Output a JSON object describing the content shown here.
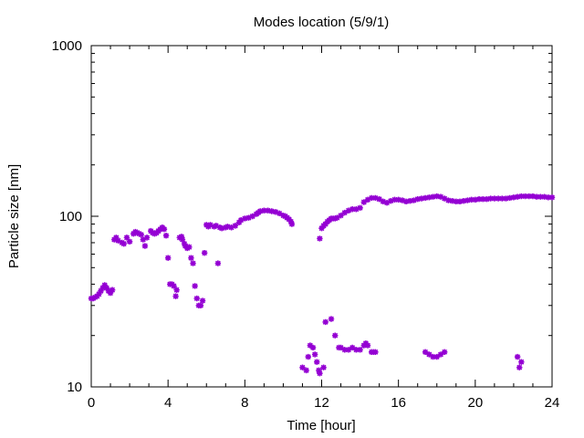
{
  "chart_data": {
    "type": "scatter",
    "title": "Modes location (5/9/1)",
    "xlabel": "Time [hour]",
    "ylabel": "Particle size [nm]",
    "xlim": [
      0,
      24
    ],
    "ylim": [
      10,
      1000
    ],
    "yscale": "log",
    "grid": false,
    "xticks": [
      0,
      4,
      8,
      12,
      16,
      20,
      24
    ],
    "xtick_labels": [
      "0",
      "4",
      "8",
      "12",
      "16",
      "20",
      "24"
    ],
    "yticks": [
      10,
      100,
      1000
    ],
    "ytick_labels": [
      "10",
      "100",
      "1000"
    ],
    "marker": "asterisk",
    "colors": {
      "series": "#9400d3",
      "axis": "#000000",
      "background": "#ffffff"
    },
    "series": [
      {
        "points": [
          [
            0.0,
            33
          ],
          [
            0.1,
            33
          ],
          [
            0.2,
            33.5
          ],
          [
            0.3,
            34
          ],
          [
            0.4,
            35
          ],
          [
            0.5,
            36.5
          ],
          [
            0.6,
            38
          ],
          [
            0.7,
            39.5
          ],
          [
            0.8,
            38
          ],
          [
            0.9,
            36.5
          ],
          [
            1.0,
            35.5
          ],
          [
            1.1,
            37
          ],
          [
            1.2,
            73
          ],
          [
            1.3,
            75
          ],
          [
            1.4,
            72
          ],
          [
            1.6,
            70
          ],
          [
            1.7,
            69
          ],
          [
            1.85,
            75
          ],
          [
            2.0,
            71
          ],
          [
            2.2,
            79
          ],
          [
            2.3,
            81
          ],
          [
            2.4,
            80
          ],
          [
            2.5,
            79
          ],
          [
            2.6,
            78
          ],
          [
            2.7,
            73
          ],
          [
            2.8,
            67
          ],
          [
            2.9,
            75
          ],
          [
            3.1,
            82
          ],
          [
            3.2,
            80
          ],
          [
            3.3,
            79
          ],
          [
            3.4,
            80
          ],
          [
            3.5,
            82
          ],
          [
            3.6,
            84
          ],
          [
            3.7,
            86
          ],
          [
            3.8,
            84
          ],
          [
            3.9,
            77
          ],
          [
            4.0,
            57
          ],
          [
            4.1,
            40
          ],
          [
            4.2,
            40
          ],
          [
            4.3,
            39
          ],
          [
            4.4,
            34
          ],
          [
            4.45,
            37
          ],
          [
            4.6,
            75
          ],
          [
            4.7,
            76
          ],
          [
            4.75,
            73
          ],
          [
            4.85,
            69
          ],
          [
            4.9,
            67
          ],
          [
            5.0,
            65
          ],
          [
            5.1,
            66
          ],
          [
            5.2,
            57
          ],
          [
            5.3,
            53
          ],
          [
            5.4,
            39
          ],
          [
            5.5,
            33
          ],
          [
            5.6,
            30
          ],
          [
            5.7,
            30
          ],
          [
            5.8,
            32
          ],
          [
            5.9,
            61
          ],
          [
            6.0,
            89
          ],
          [
            6.1,
            87
          ],
          [
            6.2,
            89
          ],
          [
            6.4,
            87
          ],
          [
            6.5,
            88
          ],
          [
            6.6,
            53
          ],
          [
            6.7,
            86
          ],
          [
            6.8,
            85
          ],
          [
            7.0,
            86
          ],
          [
            7.1,
            87
          ],
          [
            7.3,
            86
          ],
          [
            7.5,
            88
          ],
          [
            7.7,
            92
          ],
          [
            7.8,
            95
          ],
          [
            8.0,
            97
          ],
          [
            8.2,
            98
          ],
          [
            8.4,
            100
          ],
          [
            8.6,
            103
          ],
          [
            8.7,
            105
          ],
          [
            8.8,
            107
          ],
          [
            9.0,
            108
          ],
          [
            9.2,
            108
          ],
          [
            9.4,
            107
          ],
          [
            9.6,
            106
          ],
          [
            9.8,
            104
          ],
          [
            10.0,
            101
          ],
          [
            10.1,
            100
          ],
          [
            10.2,
            98
          ],
          [
            10.3,
            96
          ],
          [
            10.4,
            93
          ],
          [
            10.45,
            90
          ],
          [
            11.0,
            13
          ],
          [
            11.2,
            12.5
          ],
          [
            11.3,
            15
          ],
          [
            11.4,
            17.5
          ],
          [
            11.55,
            17
          ],
          [
            11.65,
            15.5
          ],
          [
            11.75,
            14
          ],
          [
            11.85,
            12.5
          ],
          [
            11.9,
            12
          ],
          [
            11.9,
            74
          ],
          [
            12.0,
            85
          ],
          [
            12.1,
            88
          ],
          [
            12.2,
            90
          ],
          [
            12.3,
            93
          ],
          [
            12.4,
            95
          ],
          [
            12.5,
            97
          ],
          [
            12.6,
            97
          ],
          [
            12.7,
            97
          ],
          [
            12.8,
            98
          ],
          [
            13.0,
            101
          ],
          [
            13.2,
            105
          ],
          [
            13.4,
            108
          ],
          [
            13.6,
            110
          ],
          [
            13.8,
            110
          ],
          [
            14.0,
            112
          ],
          [
            12.1,
            13
          ],
          [
            12.2,
            24
          ],
          [
            12.5,
            25
          ],
          [
            12.7,
            20
          ],
          [
            12.9,
            17
          ],
          [
            13.0,
            17
          ],
          [
            13.2,
            16.5
          ],
          [
            13.4,
            16.5
          ],
          [
            13.6,
            17
          ],
          [
            13.8,
            16.5
          ],
          [
            14.0,
            16.5
          ],
          [
            14.2,
            17.5
          ],
          [
            14.3,
            18
          ],
          [
            14.4,
            17.5
          ],
          [
            14.6,
            16
          ],
          [
            14.7,
            16
          ],
          [
            14.8,
            16
          ],
          [
            14.2,
            121
          ],
          [
            14.4,
            125
          ],
          [
            14.6,
            128
          ],
          [
            14.8,
            128
          ],
          [
            15.0,
            126
          ],
          [
            15.2,
            122
          ],
          [
            15.4,
            120
          ],
          [
            15.6,
            123
          ],
          [
            15.8,
            125
          ],
          [
            16.0,
            125
          ],
          [
            16.2,
            124
          ],
          [
            16.4,
            122
          ],
          [
            16.6,
            123
          ],
          [
            16.8,
            124
          ],
          [
            17.0,
            126
          ],
          [
            17.2,
            127
          ],
          [
            17.4,
            128
          ],
          [
            17.6,
            129
          ],
          [
            17.8,
            130
          ],
          [
            18.0,
            131
          ],
          [
            18.2,
            130
          ],
          [
            18.4,
            127
          ],
          [
            17.4,
            16
          ],
          [
            17.6,
            15.5
          ],
          [
            17.8,
            15
          ],
          [
            18.0,
            15
          ],
          [
            18.2,
            15.5
          ],
          [
            18.4,
            16
          ],
          [
            18.6,
            124
          ],
          [
            18.8,
            123
          ],
          [
            19.0,
            122
          ],
          [
            19.2,
            122
          ],
          [
            19.4,
            123
          ],
          [
            19.6,
            124
          ],
          [
            19.8,
            125
          ],
          [
            20.0,
            125
          ],
          [
            20.2,
            126
          ],
          [
            20.4,
            126
          ],
          [
            20.6,
            126
          ],
          [
            20.8,
            127
          ],
          [
            21.0,
            127
          ],
          [
            21.2,
            127
          ],
          [
            21.4,
            127
          ],
          [
            21.6,
            127
          ],
          [
            21.8,
            128
          ],
          [
            22.0,
            129
          ],
          [
            22.2,
            130
          ],
          [
            22.4,
            131
          ],
          [
            22.6,
            131
          ],
          [
            22.8,
            131
          ],
          [
            23.0,
            131
          ],
          [
            23.2,
            130
          ],
          [
            23.4,
            130
          ],
          [
            23.6,
            130
          ],
          [
            23.8,
            129
          ],
          [
            24.0,
            129
          ],
          [
            22.2,
            15
          ],
          [
            22.3,
            13
          ],
          [
            22.4,
            14
          ]
        ]
      }
    ]
  }
}
